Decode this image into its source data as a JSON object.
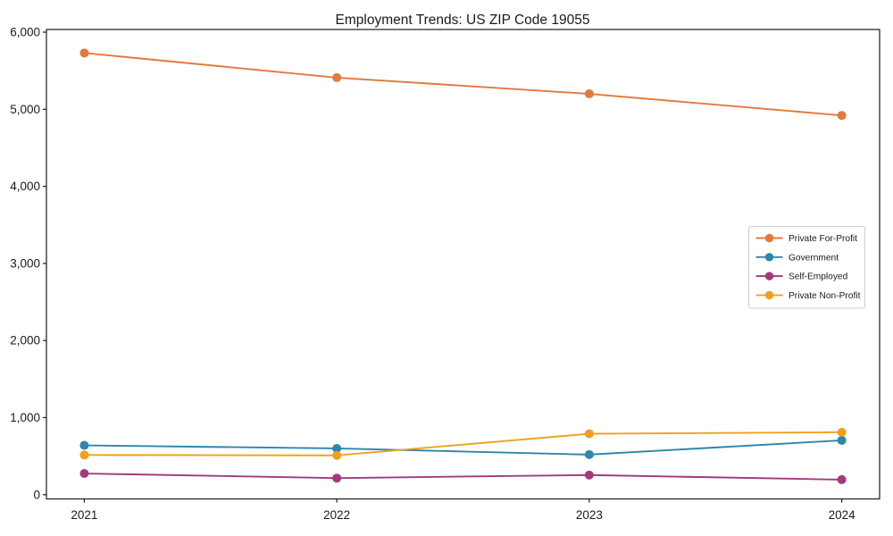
{
  "chart_data": {
    "type": "line",
    "title": "Employment Trends: US ZIP Code 19055",
    "x": [
      "2021",
      "2022",
      "2023",
      "2024"
    ],
    "x_numeric": [
      2021,
      2022,
      2023,
      2024
    ],
    "series": [
      {
        "name": "Private For-Profit",
        "color": "#E2793C",
        "values": [
          5730,
          5410,
          5200,
          4920
        ]
      },
      {
        "name": "Government",
        "color": "#2E86A8",
        "values": [
          640,
          600,
          520,
          705
        ]
      },
      {
        "name": "Self-Employed",
        "color": "#A23A7D",
        "values": [
          275,
          215,
          255,
          195
        ]
      },
      {
        "name": "Private Non-Profit",
        "color": "#F0A01C",
        "values": [
          515,
          510,
          790,
          810
        ]
      }
    ],
    "xlabel": "",
    "ylabel": "",
    "xlim": [
      2020.85,
      2024.15
    ],
    "ylim": [
      -55,
      6035
    ],
    "yticks": [
      0,
      1000,
      2000,
      3000,
      4000,
      5000,
      6000
    ],
    "ytick_labels": [
      "0",
      "1,000",
      "2,000",
      "3,000",
      "4,000",
      "5,000",
      "6,000"
    ],
    "grid": false,
    "legend_position": "center-right",
    "marker": "circle",
    "axis_color": "#1a1a1a",
    "text_color": "#1a1a1a",
    "legend_border_color": "#cccccc",
    "background": "#ffffff"
  }
}
